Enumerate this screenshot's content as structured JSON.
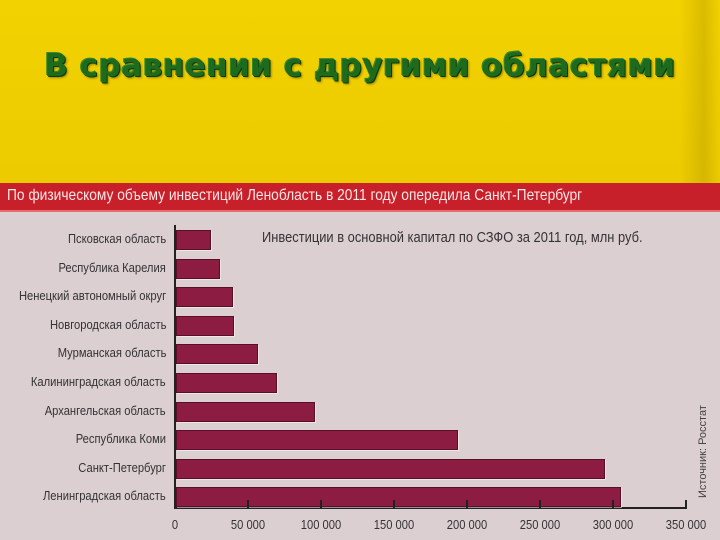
{
  "slide": {
    "title": "В сравнении с другими областями",
    "title_color": "#1f6b1d",
    "background_color": "#f0cf00"
  },
  "banner": {
    "text": "По физическому объему инвестиций Ленобласть в 2011 году опередила Санкт-Петербург",
    "color": "#c8202a"
  },
  "source": "Источник: Росстат",
  "chart_data": {
    "type": "bar",
    "orientation": "horizontal",
    "title": "Инвестиции в основной капитал по СЗФО за 2011 год, млн руб.",
    "xlabel": "",
    "ylabel": "",
    "xlim": [
      0,
      350000
    ],
    "x_ticks": [
      "0",
      "50 000",
      "100 000",
      "150 000",
      "200 000",
      "250 000",
      "300 000",
      "350 000"
    ],
    "grid": false,
    "legend": null,
    "bar_color": "#8c1c42",
    "categories": [
      "Псковская область",
      "Республика Карелия",
      "Ненецкий автономный округ",
      "Новгородская область",
      "Мурманская область",
      "Калининградская область",
      "Архангельская область",
      "Республика Коми",
      "Санкт-Петербург",
      "Ленинградская область"
    ],
    "values": [
      24000,
      30000,
      39000,
      40000,
      56000,
      69000,
      95000,
      193000,
      294000,
      305000
    ],
    "source": "Источник: Росстат"
  }
}
